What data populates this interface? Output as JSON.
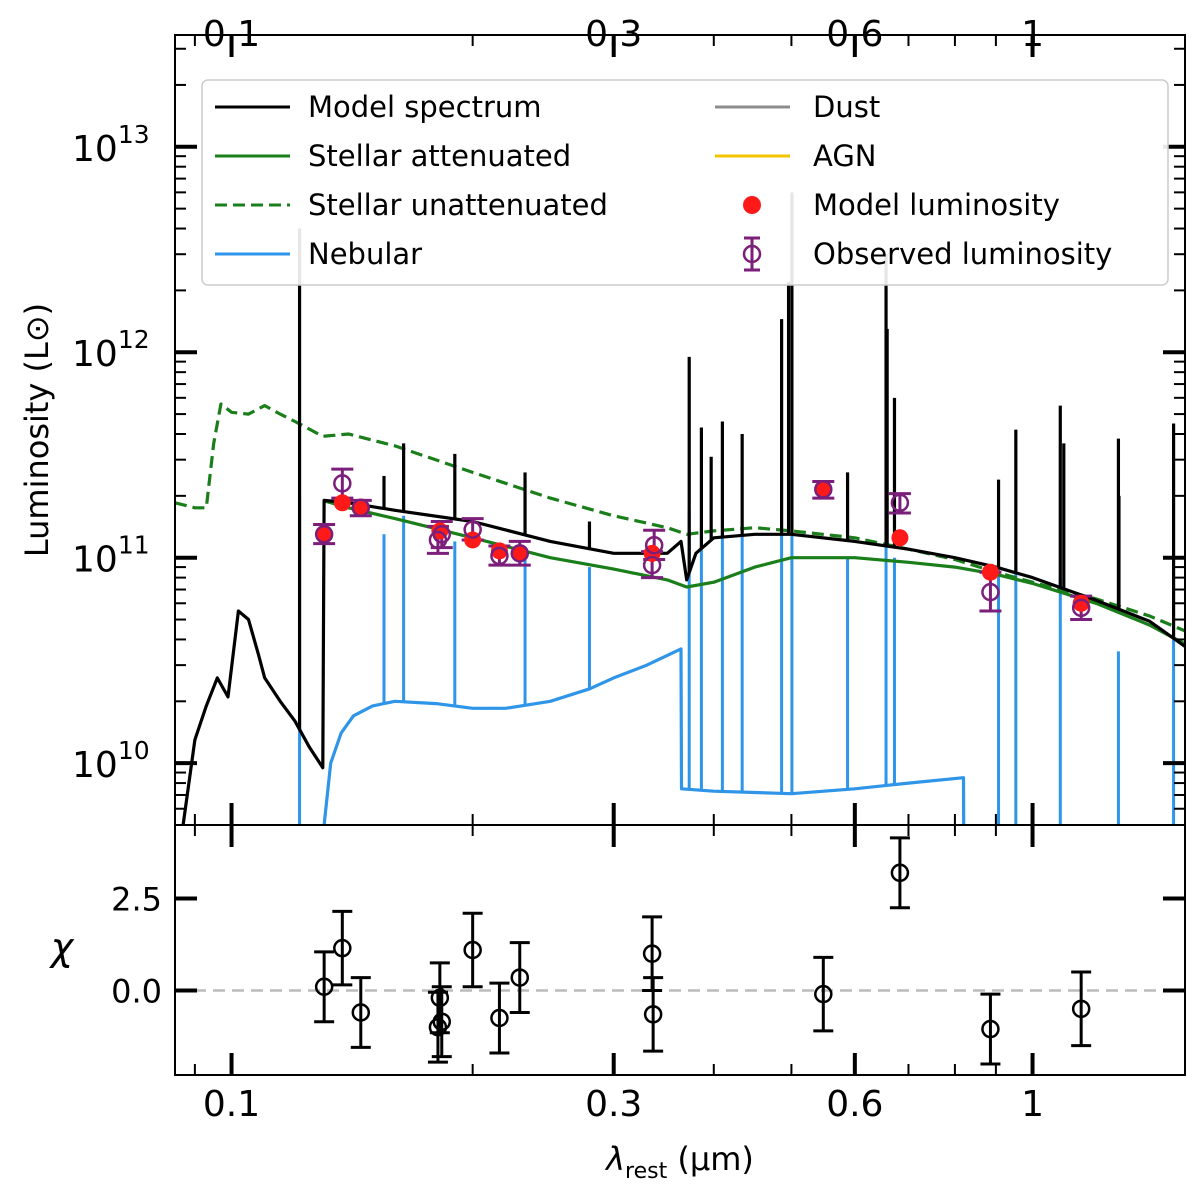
{
  "chart_data": [
    {
      "type": "line",
      "panel": "main",
      "ylabel": "Luminosity (L⊙)",
      "yscale": "log",
      "xscale": "log",
      "xlim": [
        0.085,
        1.55
      ],
      "ylim": [
        5000000000.0,
        35000000000000.0
      ],
      "xticks": [
        {
          "value": 0.1,
          "label": "0.1"
        },
        {
          "value": 0.3,
          "label": "0.3"
        },
        {
          "value": 0.6,
          "label": "0.6"
        },
        {
          "value": 1,
          "label": "1"
        }
      ],
      "yticks": [
        {
          "value": 10000000000.0,
          "base": "10",
          "exp": "10"
        },
        {
          "value": 100000000000.0,
          "base": "10",
          "exp": "11"
        },
        {
          "value": 1000000000000.0,
          "base": "10",
          "exp": "12"
        },
        {
          "value": 10000000000000.0,
          "base": "10",
          "exp": "13"
        }
      ],
      "legend": {
        "position": "top",
        "entries": [
          {
            "label": "Model spectrum",
            "kind": "line",
            "color": "#000000"
          },
          {
            "label": "Stellar attenuated",
            "kind": "line",
            "color": "#1a7f1a"
          },
          {
            "label": "Stellar unattenuated",
            "kind": "dashed",
            "color": "#1a7f1a"
          },
          {
            "label": "Nebular",
            "kind": "line",
            "color": "#2e95e8"
          },
          {
            "label": "Dust",
            "kind": "line",
            "color": "#8c8c8c"
          },
          {
            "label": "AGN",
            "kind": "line",
            "color": "#f5c400"
          },
          {
            "label": "Model luminosity",
            "kind": "dot",
            "color": "#ff1a1a"
          },
          {
            "label": "Observed luminosity",
            "kind": "errorbar",
            "color": "#7b1f7b"
          }
        ]
      },
      "series": [
        {
          "name": "Stellar unattenuated",
          "color": "#1a7f1a",
          "style": "dashed",
          "x": [
            0.085,
            0.09,
            0.093,
            0.095,
            0.097,
            0.1,
            0.105,
            0.11,
            0.115,
            0.12,
            0.13,
            0.14,
            0.16,
            0.2,
            0.25,
            0.3,
            0.35,
            0.37,
            0.4,
            0.45,
            0.5,
            0.6,
            0.7,
            0.8,
            0.9,
            1.0,
            1.2,
            1.4,
            1.55
          ],
          "y": [
            185000000000.0,
            175000000000.0,
            175000000000.0,
            360000000000.0,
            560000000000.0,
            510000000000.0,
            500000000000.0,
            550000000000.0,
            500000000000.0,
            460000000000.0,
            390000000000.0,
            400000000000.0,
            350000000000.0,
            260000000000.0,
            195000000000.0,
            160000000000.0,
            140000000000.0,
            130000000000.0,
            135000000000.0,
            140000000000.0,
            135000000000.0,
            125000000000.0,
            110000000000.0,
            98000000000.0,
            85000000000.0,
            76000000000.0,
            63000000000.0,
            52000000000.0,
            44000000000.0
          ]
        },
        {
          "name": "Stellar attenuated",
          "color": "#1a7f1a",
          "style": "solid",
          "x": [
            0.13,
            0.14,
            0.16,
            0.2,
            0.25,
            0.3,
            0.35,
            0.37,
            0.4,
            0.45,
            0.5,
            0.6,
            0.7,
            0.8,
            0.9,
            1.0,
            1.2,
            1.4,
            1.55
          ],
          "y": [
            190000000000.0,
            175000000000.0,
            155000000000.0,
            125000000000.0,
            100000000000.0,
            88000000000.0,
            78000000000.0,
            72000000000.0,
            76000000000.0,
            90000000000.0,
            100000000000.0,
            100000000000.0,
            95000000000.0,
            90000000000.0,
            83000000000.0,
            75000000000.0,
            60000000000.0,
            47000000000.0,
            38000000000.0
          ]
        },
        {
          "name": "Model spectrum",
          "color": "#000000",
          "style": "solid",
          "x": [
            0.087,
            0.09,
            0.093,
            0.096,
            0.099,
            0.102,
            0.105,
            0.108,
            0.11,
            0.115,
            0.12,
            0.125,
            0.13,
            0.1305,
            0.14,
            0.16,
            0.2,
            0.25,
            0.3,
            0.35,
            0.364,
            0.37,
            0.38,
            0.4,
            0.45,
            0.5,
            0.6,
            0.7,
            0.8,
            0.9,
            1.0,
            1.2,
            1.4,
            1.55
          ],
          "y": [
            5000000000.0,
            13000000000.0,
            19000000000.0,
            26000000000.0,
            21000000000.0,
            55000000000.0,
            50000000000.0,
            34000000000.0,
            26000000000.0,
            20000000000.0,
            16000000000.0,
            12000000000.0,
            9500000000.0,
            190000000000.0,
            185000000000.0,
            170000000000.0,
            150000000000.0,
            120000000000.0,
            105000000000.0,
            105000000000.0,
            120000000000.0,
            78000000000.0,
            105000000000.0,
            125000000000.0,
            130000000000.0,
            130000000000.0,
            120000000000.0,
            110000000000.0,
            100000000000.0,
            90000000000.0,
            80000000000.0,
            62000000000.0,
            49000000000.0,
            37000000000.0
          ]
        },
        {
          "name": "Nebular",
          "color": "#2e95e8",
          "style": "solid",
          "x": [
            0.1305,
            0.133,
            0.137,
            0.142,
            0.15,
            0.16,
            0.18,
            0.2,
            0.22,
            0.25,
            0.28,
            0.3,
            0.33,
            0.364,
            0.3645,
            0.4,
            0.45,
            0.5,
            0.6,
            0.7,
            0.82,
            0.8205
          ],
          "y": [
            5000000000.0,
            10000000000.0,
            14000000000.0,
            17000000000.0,
            19000000000.0,
            20000000000.0,
            19500000000.0,
            18500000000.0,
            18500000000.0,
            20000000000.0,
            23000000000.0,
            26000000000.0,
            30000000000.0,
            36000000000.0,
            7500000000.0,
            7300000000.0,
            7200000000.0,
            7100000000.0,
            7500000000.0,
            8000000000.0,
            8500000000.0,
            5000000000.0
          ]
        }
      ],
      "emission_lines_model": [
        {
          "x": 0.1216,
          "y": 4000000000000.0
        },
        {
          "x": 0.155,
          "y": 250000000000.0
        },
        {
          "x": 0.164,
          "y": 360000000000.0
        },
        {
          "x": 0.19,
          "y": 320000000000.0
        },
        {
          "x": 0.2325,
          "y": 260000000000.0
        },
        {
          "x": 0.2798,
          "y": 150000000000.0
        },
        {
          "x": 0.3727,
          "y": 950000000000.0
        },
        {
          "x": 0.386,
          "y": 430000000000.0
        },
        {
          "x": 0.397,
          "y": 310000000000.0
        },
        {
          "x": 0.41,
          "y": 460000000000.0
        },
        {
          "x": 0.434,
          "y": 400000000000.0
        },
        {
          "x": 0.4861,
          "y": 1450000000000.0
        },
        {
          "x": 0.4959,
          "y": 2200000000000.0
        },
        {
          "x": 0.5007,
          "y": 6000000000000.0
        },
        {
          "x": 0.5876,
          "y": 260000000000.0
        },
        {
          "x": 0.6563,
          "y": 3000000000000.0
        },
        {
          "x": 0.6584,
          "y": 1300000000000.0
        },
        {
          "x": 0.6724,
          "y": 600000000000.0
        },
        {
          "x": 0.9069,
          "y": 240000000000.0
        },
        {
          "x": 0.9531,
          "y": 420000000000.0
        },
        {
          "x": 1.083,
          "y": 550000000000.0
        },
        {
          "x": 1.094,
          "y": 360000000000.0
        },
        {
          "x": 1.282,
          "y": 200000000000.0
        },
        {
          "x": 1.28,
          "y": 380000000000.0
        },
        {
          "x": 1.5,
          "y": 450000000000.0
        }
      ],
      "emission_lines_nebular": [
        {
          "x": 0.1216,
          "y": 200000000000.0
        },
        {
          "x": 0.155,
          "y": 130000000000.0
        },
        {
          "x": 0.164,
          "y": 160000000000.0
        },
        {
          "x": 0.19,
          "y": 120000000000.0
        },
        {
          "x": 0.2325,
          "y": 100000000000.0
        },
        {
          "x": 0.2798,
          "y": 90000000000.0
        },
        {
          "x": 0.3727,
          "y": 170000000000.0
        },
        {
          "x": 0.386,
          "y": 140000000000.0
        },
        {
          "x": 0.41,
          "y": 135000000000.0
        },
        {
          "x": 0.434,
          "y": 130000000000.0
        },
        {
          "x": 0.4861,
          "y": 130000000000.0
        },
        {
          "x": 0.5007,
          "y": 130000000000.0
        },
        {
          "x": 0.5876,
          "y": 100000000000.0
        },
        {
          "x": 0.6563,
          "y": 120000000000.0
        },
        {
          "x": 0.6724,
          "y": 100000000000.0
        },
        {
          "x": 0.9069,
          "y": 90000000000.0
        },
        {
          "x": 0.9531,
          "y": 90000000000.0
        },
        {
          "x": 1.083,
          "y": 80000000000.0
        },
        {
          "x": 1.28,
          "y": 35000000000.0
        },
        {
          "x": 1.5,
          "y": 40000000000.0
        }
      ],
      "model_luminosity": [
        {
          "x": 0.1305,
          "y": 130000000000.0
        },
        {
          "x": 0.1375,
          "y": 185000000000.0
        },
        {
          "x": 0.145,
          "y": 175000000000.0
        },
        {
          "x": 0.182,
          "y": 135000000000.0
        },
        {
          "x": 0.2,
          "y": 122000000000.0
        },
        {
          "x": 0.216,
          "y": 108000000000.0
        },
        {
          "x": 0.229,
          "y": 105000000000.0
        },
        {
          "x": 0.335,
          "y": 105000000000.0
        },
        {
          "x": 0.548,
          "y": 215000000000.0
        },
        {
          "x": 0.683,
          "y": 125000000000.0
        },
        {
          "x": 0.886,
          "y": 85000000000.0
        },
        {
          "x": 1.15,
          "y": 60000000000.0
        }
      ],
      "observed_luminosity": [
        {
          "x": 0.1305,
          "y": 130000000000.0,
          "lo": 117000000000.0,
          "hi": 145000000000.0
        },
        {
          "x": 0.1375,
          "y": 230000000000.0,
          "lo": 195000000000.0,
          "hi": 270000000000.0
        },
        {
          "x": 0.145,
          "y": 175000000000.0,
          "lo": 160000000000.0,
          "hi": 190000000000.0
        },
        {
          "x": 0.181,
          "y": 122000000000.0,
          "lo": 105000000000.0,
          "hi": 142000000000.0
        },
        {
          "x": 0.183,
          "y": 130000000000.0,
          "lo": 112000000000.0,
          "hi": 150000000000.0
        },
        {
          "x": 0.2,
          "y": 137000000000.0,
          "lo": 122000000000.0,
          "hi": 155000000000.0
        },
        {
          "x": 0.216,
          "y": 102000000000.0,
          "lo": 92000000000.0,
          "hi": 114000000000.0
        },
        {
          "x": 0.229,
          "y": 105000000000.0,
          "lo": 92000000000.0,
          "hi": 120000000000.0
        },
        {
          "x": 0.335,
          "y": 92000000000.0,
          "lo": 80000000000.0,
          "hi": 107000000000.0
        },
        {
          "x": 0.337,
          "y": 115000000000.0,
          "lo": 98000000000.0,
          "hi": 136000000000.0
        },
        {
          "x": 0.548,
          "y": 215000000000.0,
          "lo": 195000000000.0,
          "hi": 235000000000.0
        },
        {
          "x": 0.683,
          "y": 185000000000.0,
          "lo": 165000000000.0,
          "hi": 205000000000.0
        },
        {
          "x": 0.886,
          "y": 68000000000.0,
          "lo": 55000000000.0,
          "hi": 85000000000.0
        },
        {
          "x": 1.15,
          "y": 57000000000.0,
          "lo": 50000000000.0,
          "hi": 65000000000.0
        }
      ]
    },
    {
      "type": "scatter",
      "panel": "residuals",
      "xlabel": "λrest (μm)",
      "xlabel_parts": {
        "symbol": "λ",
        "subscript": "rest",
        "unit": " (μm)"
      },
      "ylabel": "χ",
      "xscale": "log",
      "xlim": [
        0.085,
        1.55
      ],
      "ylim": [
        -2.3,
        4.5
      ],
      "xticks": [
        {
          "value": 0.1,
          "label": "0.1"
        },
        {
          "value": 0.3,
          "label": "0.3"
        },
        {
          "value": 0.6,
          "label": "0.6"
        },
        {
          "value": 1,
          "label": "1"
        }
      ],
      "yticks": [
        {
          "value": 0.0,
          "label": "0.0"
        },
        {
          "value": 2.5,
          "label": "2.5"
        }
      ],
      "reference_line": 0,
      "points": [
        {
          "x": 0.1305,
          "y": 0.1,
          "err": 0.95
        },
        {
          "x": 0.1375,
          "y": 1.15,
          "err": 1.0
        },
        {
          "x": 0.145,
          "y": -0.6,
          "err": 0.95
        },
        {
          "x": 0.181,
          "y": -1.0,
          "err": 0.95
        },
        {
          "x": 0.182,
          "y": -0.2,
          "err": 0.95
        },
        {
          "x": 0.183,
          "y": -0.85,
          "err": 0.95
        },
        {
          "x": 0.2,
          "y": 1.1,
          "err": 1.0
        },
        {
          "x": 0.216,
          "y": -0.75,
          "err": 0.95
        },
        {
          "x": 0.229,
          "y": 0.35,
          "err": 0.95
        },
        {
          "x": 0.335,
          "y": 1.0,
          "err": 1.0
        },
        {
          "x": 0.336,
          "y": -0.65,
          "err": 1.0
        },
        {
          "x": 0.548,
          "y": -0.1,
          "err": 1.0
        },
        {
          "x": 0.683,
          "y": 3.2,
          "err": 0.95
        },
        {
          "x": 0.886,
          "y": -1.05,
          "err": 0.95
        },
        {
          "x": 1.15,
          "y": -0.5,
          "err": 1.0
        }
      ]
    }
  ]
}
